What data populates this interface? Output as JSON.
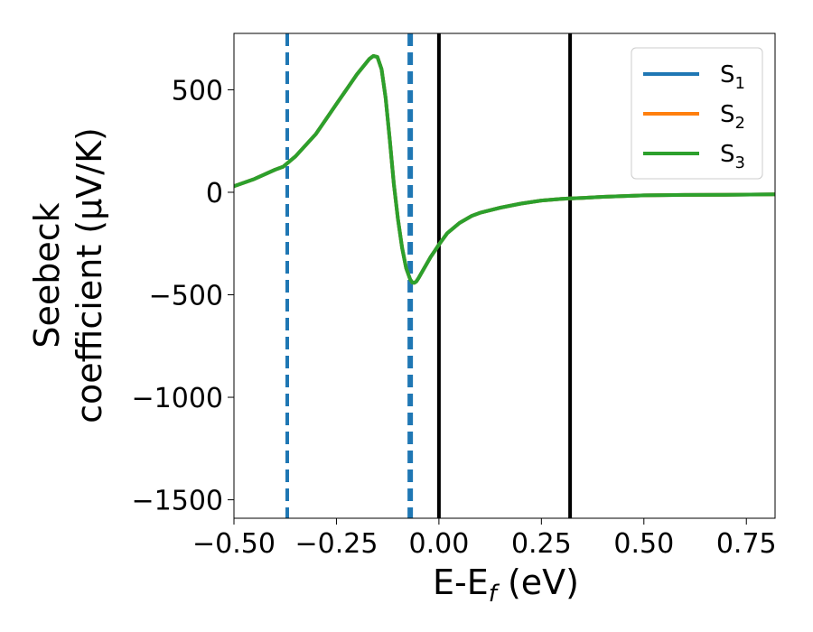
{
  "chart_data": {
    "type": "line",
    "xlabel": "E-E_f (eV)",
    "ylabel_line1": "Seebeck",
    "ylabel_line2": "coefficient  (μV/K)",
    "xlim": [
      -0.5,
      0.82
    ],
    "ylim": [
      -1590,
      775
    ],
    "x_ticks": [
      -0.5,
      -0.25,
      0.0,
      0.25,
      0.5,
      0.75
    ],
    "x_tick_labels": [
      "−0.50",
      "−0.25",
      "0.00",
      "0.25",
      "0.50",
      "0.75"
    ],
    "y_ticks": [
      500,
      0,
      -500,
      -1000,
      -1500
    ],
    "y_tick_labels": [
      "500",
      "0",
      "−500",
      "−1000",
      "−1500"
    ],
    "grid": false,
    "legend_position": "upper right",
    "series": [
      {
        "name": "S",
        "subscript": "1",
        "color": "#1f77b4",
        "x": [
          -0.5,
          -0.45,
          -0.4,
          -0.38,
          -0.35,
          -0.3,
          -0.25,
          -0.2,
          -0.17,
          -0.16,
          -0.15,
          -0.14,
          -0.13,
          -0.12,
          -0.11,
          -0.1,
          -0.09,
          -0.08,
          -0.07,
          -0.065,
          -0.06,
          -0.055,
          -0.05,
          -0.04,
          -0.03,
          -0.02,
          -0.01,
          0.0,
          0.02,
          0.05,
          0.08,
          0.1,
          0.15,
          0.2,
          0.25,
          0.3,
          0.32,
          0.35,
          0.4,
          0.5,
          0.6,
          0.7,
          0.82
        ],
        "y": [
          30,
          65,
          110,
          125,
          175,
          285,
          430,
          575,
          650,
          665,
          660,
          600,
          460,
          260,
          40,
          -130,
          -270,
          -370,
          -425,
          -440,
          -442,
          -435,
          -420,
          -385,
          -350,
          -315,
          -285,
          -255,
          -200,
          -150,
          -115,
          -100,
          -75,
          -55,
          -40,
          -32,
          -30,
          -28,
          -22,
          -15,
          -13,
          -12,
          -10
        ]
      },
      {
        "name": "S",
        "subscript": "2",
        "color": "#ff7f0e",
        "x": [
          -0.5,
          -0.45,
          -0.4,
          -0.38,
          -0.35,
          -0.3,
          -0.25,
          -0.2,
          -0.17,
          -0.16,
          -0.15,
          -0.14,
          -0.13,
          -0.12,
          -0.11,
          -0.1,
          -0.09,
          -0.08,
          -0.07,
          -0.065,
          -0.06,
          -0.055,
          -0.05,
          -0.04,
          -0.03,
          -0.02,
          -0.01,
          0.0,
          0.02,
          0.05,
          0.08,
          0.1,
          0.15,
          0.2,
          0.25,
          0.3,
          0.32,
          0.35,
          0.4,
          0.5,
          0.6,
          0.7,
          0.82
        ],
        "y": [
          30,
          65,
          110,
          125,
          175,
          285,
          430,
          575,
          650,
          665,
          660,
          600,
          460,
          260,
          40,
          -130,
          -270,
          -370,
          -425,
          -440,
          -442,
          -435,
          -420,
          -385,
          -350,
          -315,
          -285,
          -255,
          -200,
          -150,
          -115,
          -100,
          -75,
          -55,
          -40,
          -32,
          -30,
          -28,
          -22,
          -15,
          -13,
          -12,
          -10
        ]
      },
      {
        "name": "S",
        "subscript": "3",
        "color": "#2ca02c",
        "x": [
          -0.5,
          -0.45,
          -0.4,
          -0.38,
          -0.35,
          -0.3,
          -0.25,
          -0.2,
          -0.17,
          -0.16,
          -0.15,
          -0.14,
          -0.13,
          -0.12,
          -0.11,
          -0.1,
          -0.09,
          -0.08,
          -0.07,
          -0.065,
          -0.06,
          -0.055,
          -0.05,
          -0.04,
          -0.03,
          -0.02,
          -0.01,
          0.0,
          0.02,
          0.05,
          0.08,
          0.1,
          0.15,
          0.2,
          0.25,
          0.3,
          0.32,
          0.35,
          0.4,
          0.5,
          0.6,
          0.7,
          0.82
        ],
        "y": [
          30,
          65,
          110,
          125,
          175,
          285,
          430,
          575,
          650,
          665,
          660,
          600,
          460,
          260,
          40,
          -130,
          -270,
          -370,
          -425,
          -440,
          -442,
          -435,
          -420,
          -385,
          -350,
          -315,
          -285,
          -255,
          -200,
          -150,
          -115,
          -100,
          -75,
          -55,
          -40,
          -32,
          -30,
          -28,
          -22,
          -15,
          -13,
          -12,
          -10
        ]
      }
    ],
    "vertical_lines": [
      {
        "x": -0.37,
        "color": "#1f77b4",
        "style": "dashed"
      },
      {
        "x": -0.07,
        "color": "#1f77b4",
        "style": "dashed"
      },
      {
        "x": 0.0,
        "color": "#000000",
        "style": "solid"
      },
      {
        "x": 0.32,
        "color": "#000000",
        "style": "solid"
      }
    ]
  }
}
